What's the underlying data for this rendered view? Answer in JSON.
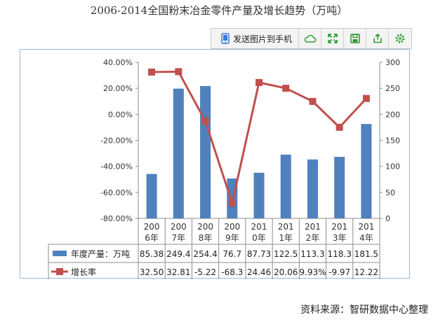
{
  "toolbar": {
    "send_label": "发送图片到手机",
    "icons": [
      "phone-icon",
      "cloud-icon",
      "fullscreen-icon",
      "save-icon",
      "share-icon",
      "settings-icon"
    ]
  },
  "source": "资料来源：智研数据中心整理",
  "colors": {
    "bar": "#4f81bd",
    "line": "#c0504d",
    "toolbar_icon": "#2e9b2e"
  },
  "chart_data": {
    "type": "bar+line",
    "title": "2006-2014全国粉末冶金零件产量及增长趋势（万吨）",
    "categories": [
      "2006年",
      "2007年",
      "2008年",
      "2009年",
      "2010年",
      "2011年",
      "2012年",
      "2013年",
      "2014年"
    ],
    "category_lines": [
      [
        "200",
        "6年"
      ],
      [
        "200",
        "7年"
      ],
      [
        "200",
        "8年"
      ],
      [
        "200",
        "9年"
      ],
      [
        "201",
        "0年"
      ],
      [
        "201",
        "1年"
      ],
      [
        "201",
        "2年"
      ],
      [
        "201",
        "3年"
      ],
      [
        "201",
        "4年"
      ]
    ],
    "series": [
      {
        "name": "年度产量：万吨",
        "type": "bar",
        "axis": "right",
        "values": [
          85.38,
          249.4,
          254.4,
          76.7,
          87.73,
          122.5,
          113.3,
          118.3,
          181.5
        ],
        "labels": [
          "85.38",
          "249.4",
          "254.4",
          "76.7",
          "87.73",
          "122.5",
          "113.3",
          "118.3",
          "181.5"
        ]
      },
      {
        "name": "增长率",
        "type": "line",
        "axis": "left",
        "values": [
          32.5,
          32.81,
          -5.22,
          -68.3,
          24.46,
          20.06,
          9.93,
          -9.97,
          12.22
        ],
        "labels": [
          "32.50",
          "32.81",
          "-5.22",
          "-68.3",
          "24.46",
          "20.06",
          "9.93%",
          "-9.97",
          "12.22"
        ]
      }
    ],
    "left_axis": {
      "min": -80,
      "max": 40,
      "ticks": [
        "40.00%",
        "20.00%",
        "0.00%",
        "-20.00%",
        "-40.00%",
        "-60.00%",
        "-80.00%"
      ]
    },
    "right_axis": {
      "min": 0,
      "max": 300,
      "ticks": [
        "300",
        "250",
        "200",
        "150",
        "100",
        "50",
        "0"
      ]
    },
    "legend": "table-bottom",
    "grid": false
  }
}
